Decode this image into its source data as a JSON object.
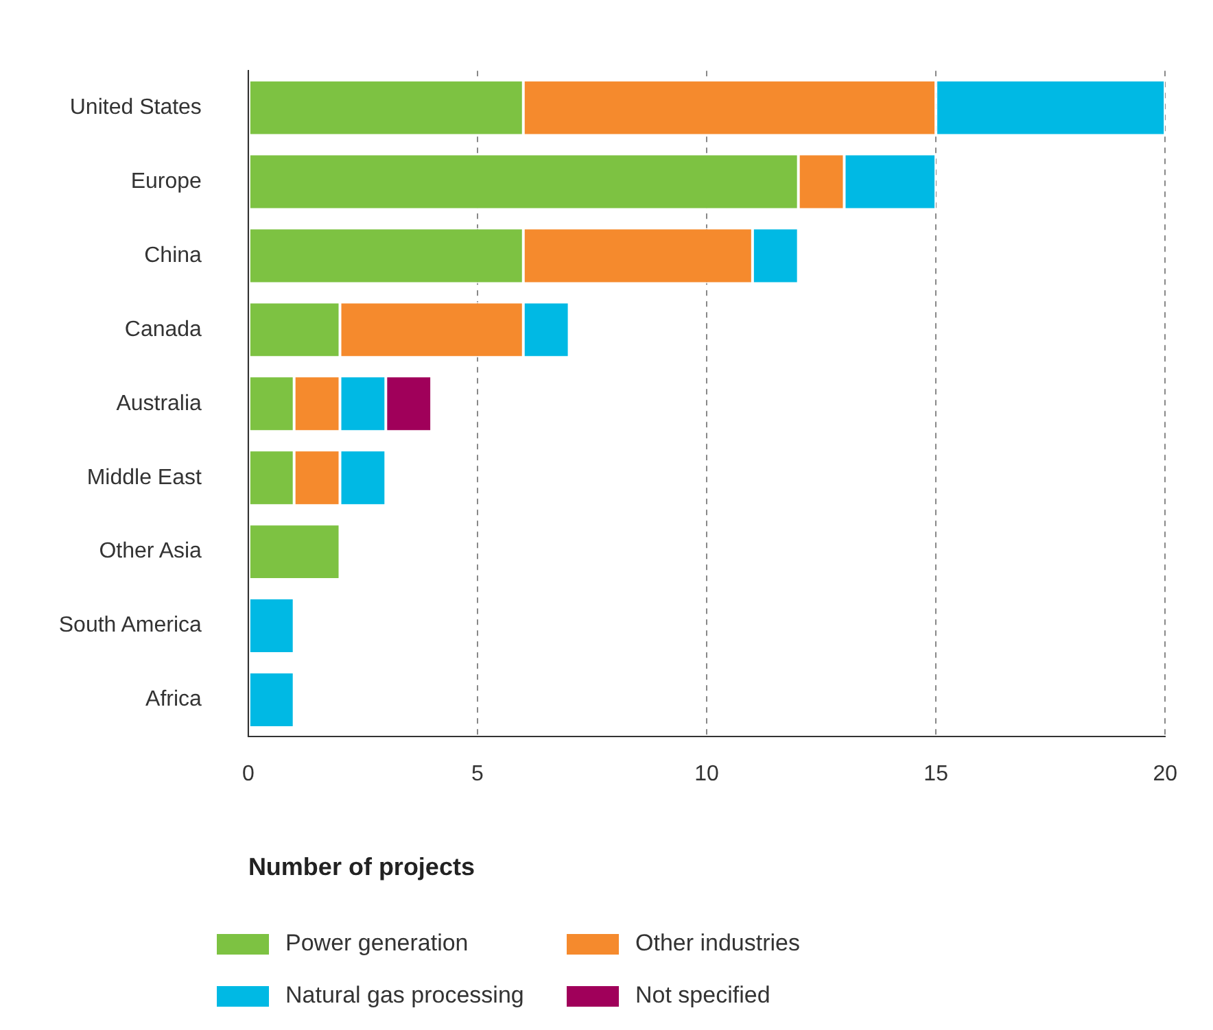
{
  "chart_data": {
    "type": "bar",
    "orientation": "horizontal",
    "stacked": true,
    "xlabel": "Number of projects",
    "categories": [
      "United States",
      "Europe",
      "China",
      "Canada",
      "Australia",
      "Middle East",
      "Other Asia",
      "South America",
      "Africa"
    ],
    "series": [
      {
        "name": "Power generation",
        "color": "#7dc242",
        "values": [
          6,
          12,
          6,
          2,
          1,
          1,
          2,
          0,
          0
        ]
      },
      {
        "name": "Other industries",
        "color": "#f58a2d",
        "values": [
          9,
          1,
          5,
          4,
          1,
          1,
          0,
          0,
          0
        ]
      },
      {
        "name": "Natural gas processing",
        "color": "#00b9e4",
        "values": [
          5,
          2,
          1,
          1,
          1,
          1,
          0,
          1,
          1
        ]
      },
      {
        "name": "Not specified",
        "color": "#a0005a",
        "values": [
          0,
          0,
          0,
          0,
          1,
          0,
          0,
          0,
          0
        ]
      }
    ],
    "xlim": [
      0,
      20
    ],
    "xticks": [
      0,
      5,
      10,
      15,
      20
    ],
    "grid": "x",
    "legend": "bottom"
  }
}
